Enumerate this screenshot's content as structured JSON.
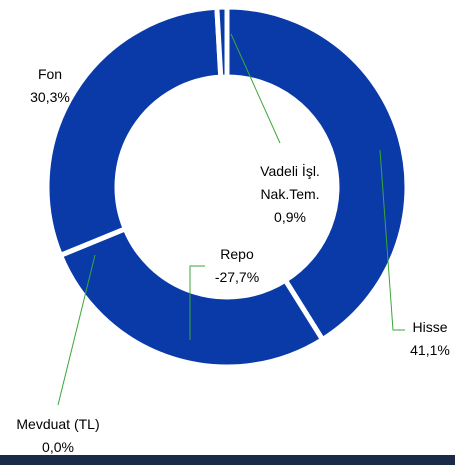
{
  "chart_data": {
    "type": "donut",
    "categories": [
      "Hisse",
      "Repo",
      "Fon",
      "Vadeli İşl. Nak.Tem.",
      "Mevduat (TL)"
    ],
    "values": [
      41.1,
      -27.7,
      30.3,
      0.9,
      0.0
    ],
    "value_labels": [
      "41,1%",
      "-27,7%",
      "30,3%",
      "0,9%",
      "0,0%"
    ],
    "color": "#0a3aa8"
  }
}
